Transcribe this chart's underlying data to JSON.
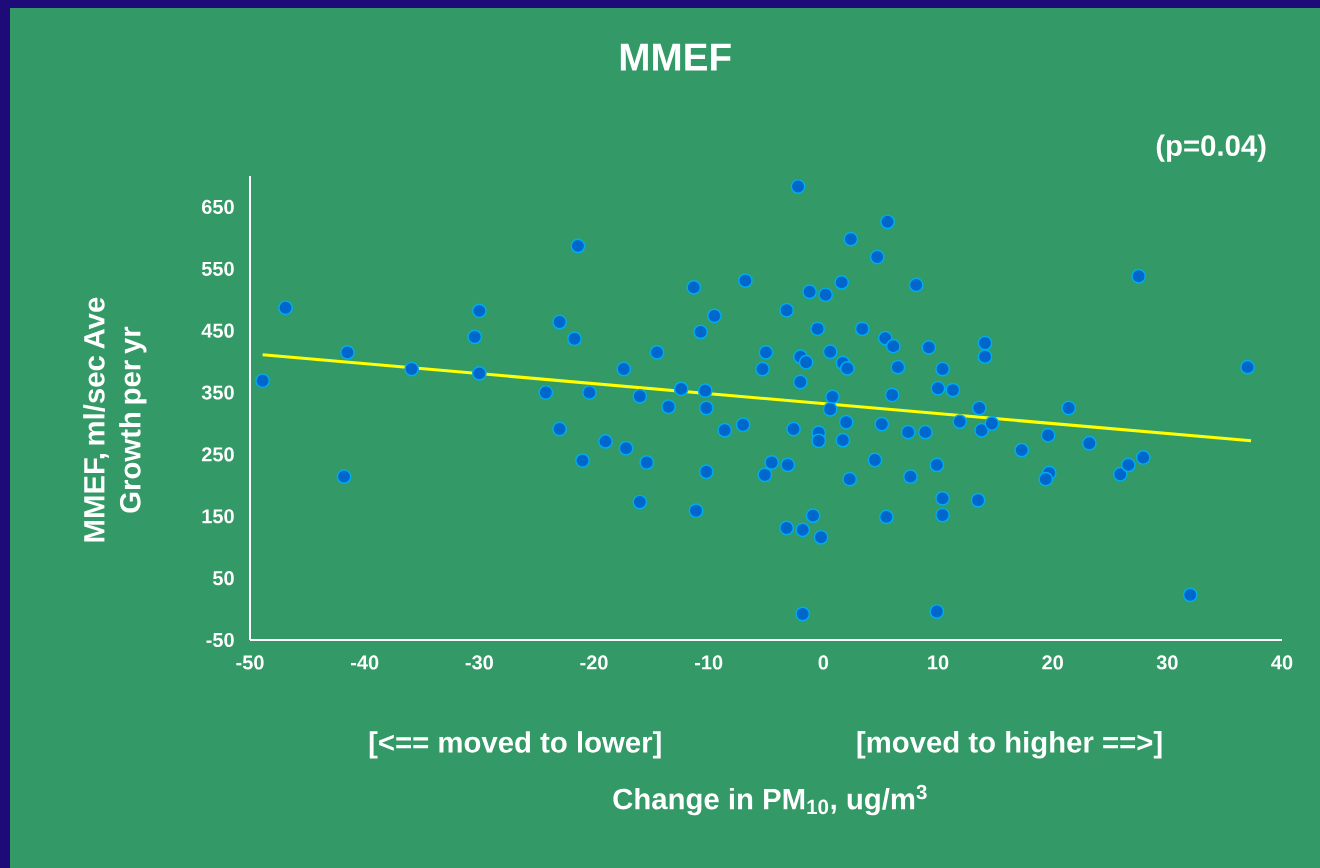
{
  "chart_data": {
    "type": "scatter",
    "title": "MMEF",
    "xlabel": "Change in PM$_{10}$, ug/m$^{3}$",
    "ylabel": "MMEF, ml/sec Ave Growth per yr",
    "annotations": [
      "(p=0.04)",
      "[<== moved to lower]",
      "[moved to higher ==>]"
    ],
    "xlim": [
      -50,
      40
    ],
    "ylim": [
      -50,
      700
    ],
    "xticks": [
      -50,
      -40,
      -30,
      -20,
      -10,
      0,
      10,
      20,
      30,
      40
    ],
    "yticks": [
      -50,
      50,
      150,
      250,
      350,
      450,
      550,
      650
    ],
    "series": [
      {
        "marker": "circle",
        "color": "#0066cc",
        "x": [
          -48.9,
          -46.9,
          -41.5,
          -41.8,
          -35.9,
          -30.0,
          -30.4,
          -30.0,
          -24.2,
          -23.0,
          -21.7,
          -21.4,
          -23.0,
          -21.0,
          -20.4,
          -19.0,
          -17.4,
          -17.2,
          -16.0,
          -16.0,
          -15.4,
          -14.5,
          -13.5,
          -12.4,
          -11.3,
          -11.1,
          -10.7,
          -10.3,
          -10.2,
          -10.2,
          -9.5,
          -8.6,
          -7.0,
          -6.8,
          -5.3,
          -5.0,
          -5.1,
          -4.5,
          -3.2,
          -3.1,
          -3.2,
          -2.6,
          -2.2,
          -2.0,
          -1.5,
          -2.0,
          -1.8,
          -1.8,
          -1.2,
          -0.9,
          -0.5,
          -0.4,
          -0.4,
          -0.2,
          0.2,
          0.6,
          0.8,
          0.6,
          1.6,
          1.7,
          2.1,
          2.0,
          1.7,
          2.4,
          2.3,
          3.4,
          4.7,
          4.5,
          5.4,
          5.1,
          5.5,
          5.6,
          6.1,
          6.5,
          6.0,
          7.4,
          7.6,
          8.1,
          8.9,
          9.2,
          9.9,
          9.9,
          10.0,
          10.4,
          10.4,
          10.4,
          11.3,
          11.9,
          13.5,
          13.6,
          13.8,
          14.1,
          14.1,
          14.7,
          17.3,
          19.6,
          19.7,
          19.4,
          21.4,
          23.2,
          25.9,
          26.6,
          27.5,
          27.9,
          32.0,
          37.0
        ],
        "values": [
          369,
          487,
          415,
          214,
          388,
          482,
          440,
          381,
          350,
          464,
          437,
          587,
          291,
          240,
          350,
          271,
          388,
          260,
          344,
          173,
          237,
          415,
          327,
          356,
          520,
          159,
          448,
          353,
          325,
          222,
          474,
          289,
          298,
          531,
          388,
          415,
          217,
          237,
          483,
          233,
          131,
          291,
          683,
          408,
          399,
          367,
          128,
          -8,
          513,
          151,
          453,
          285,
          272,
          116,
          508,
          416,
          343,
          323,
          528,
          398,
          389,
          302,
          273,
          598,
          210,
          453,
          569,
          241,
          438,
          299,
          149,
          626,
          425,
          391,
          346,
          286,
          214,
          524,
          286,
          423,
          233,
          -4,
          357,
          388,
          179,
          152,
          354,
          303,
          176,
          325,
          289,
          430,
          408,
          300,
          257,
          281,
          220,
          210,
          325,
          268,
          218,
          233,
          538,
          245,
          23,
          391
        ]
      },
      {
        "type": "line",
        "marker": "none",
        "color": "#ffff00",
        "x": [
          -48.9,
          37.3
        ],
        "values": [
          411,
          272
        ]
      }
    ]
  }
}
